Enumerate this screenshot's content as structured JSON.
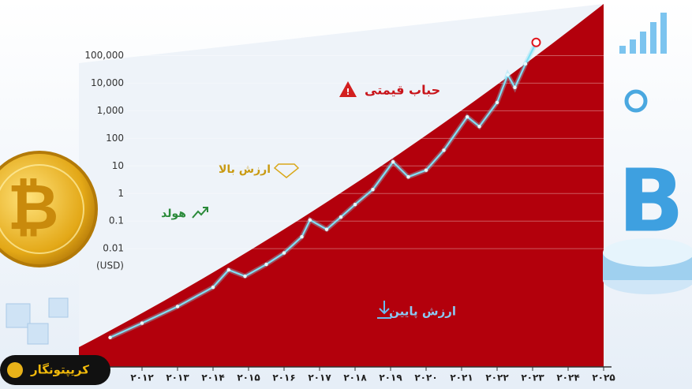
{
  "chart_data": {
    "type": "line",
    "logo": "کریپتونگار",
    "y_label": "(USD)",
    "log_scale": true,
    "grid": true,
    "color": "#7fe0f5",
    "annotations": {
      "bubble": "حباب قیمتی",
      "high": "ارزش بالا",
      "hold": "هولد",
      "low": "ارزش پایین"
    },
    "x": [
      2011.1,
      2012,
      2013,
      2014,
      2014.44,
      2014.9,
      2015.5,
      2016,
      2016.5,
      2016.73,
      2017.2,
      2017.6,
      2018,
      2018.5,
      2019.07,
      2019.5,
      2020,
      2020.5,
      2021.16,
      2021.5,
      2022,
      2022.3,
      2022.5,
      2022.8,
      2023.1
    ],
    "values": [
      6e-06,
      2e-05,
      8e-05,
      0.0004,
      0.0017,
      0.001,
      0.0027,
      0.007,
      0.027,
      0.11,
      0.05,
      0.14,
      0.4,
      1.4,
      14,
      4,
      7,
      37,
      600,
      270,
      2000,
      20000,
      7000,
      50000,
      300000
    ],
    "xlim": [
      2011,
      2025
    ],
    "xticks": [
      {
        "value": 2012,
        "label": "۲۰۱۲"
      },
      {
        "value": 2013,
        "label": "۲۰۱۳"
      },
      {
        "value": 2014,
        "label": "۲۰۱۴"
      },
      {
        "value": 2015,
        "label": "۲۰۱۵"
      },
      {
        "value": 2016,
        "label": "۲۰۱۶"
      },
      {
        "value": 2017,
        "label": "۲۰۱۷"
      },
      {
        "value": 2018,
        "label": "۲۰۱۸"
      },
      {
        "value": 2019,
        "label": "۲۰۱۹"
      },
      {
        "value": 2020,
        "label": "۲۰۲۰"
      },
      {
        "value": 2021,
        "label": "۲۰۲۱"
      },
      {
        "value": 2022,
        "label": "۲۰۲۲"
      },
      {
        "value": 2023,
        "label": "۲۰۲۳"
      },
      {
        "value": 2024,
        "label": "۲۰۲۴"
      },
      {
        "value": 2025,
        "label": "۲۰۲۵"
      }
    ],
    "ylim": [
      1e-06,
      2000000
    ],
    "yticks": [
      {
        "value": 100000,
        "label": "100,000"
      },
      {
        "value": 10000,
        "label": "10,000"
      },
      {
        "value": 1000,
        "label": "1,000"
      },
      100,
      10,
      1,
      0.1,
      0.01
    ]
  }
}
